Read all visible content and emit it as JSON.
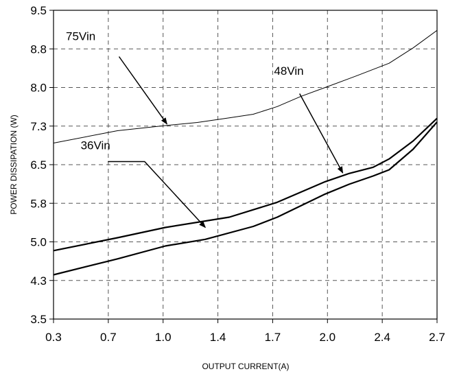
{
  "chart_data": {
    "type": "line",
    "title": "",
    "xlabel": "OUTPUT CURRENT(A)",
    "ylabel": "POWER DISSIPATION (W)",
    "xlim": [
      0.3,
      2.7
    ],
    "ylim": [
      3.5,
      9.5
    ],
    "x_tick_labels": [
      "0.3",
      "0.7",
      "1.0",
      "1.4",
      "1.7",
      "2.0",
      "2.4",
      "2.7"
    ],
    "y_tick_labels": [
      "3.5",
      "4.3",
      "5.0",
      "5.8",
      "6.5",
      "7.3",
      "8.0",
      "8.8",
      "9.5"
    ],
    "grid": true,
    "grid_style": "dashed",
    "series": [
      {
        "name": "75Vin",
        "stroke_width": 1,
        "x": [
          0.3,
          0.7,
          1.0,
          1.2,
          1.4,
          1.55,
          1.7,
          1.85,
          2.0,
          2.2,
          2.4,
          2.55,
          2.7
        ],
        "y": [
          6.92,
          7.16,
          7.26,
          7.32,
          7.41,
          7.48,
          7.63,
          7.83,
          8.0,
          8.23,
          8.47,
          8.77,
          9.11
        ]
      },
      {
        "name": "48Vin",
        "stroke_width": 2.2,
        "x": [
          0.3,
          0.7,
          1.0,
          1.4,
          1.7,
          2.0,
          2.15,
          2.3,
          2.4,
          2.55,
          2.7
        ],
        "y": [
          4.83,
          5.08,
          5.28,
          5.48,
          5.77,
          6.17,
          6.33,
          6.45,
          6.61,
          6.96,
          7.4
        ]
      },
      {
        "name": "36Vin",
        "stroke_width": 2.2,
        "x": [
          0.3,
          0.7,
          1.0,
          1.25,
          1.55,
          1.7,
          2.0,
          2.15,
          2.3,
          2.4,
          2.55,
          2.7
        ],
        "y": [
          4.36,
          4.67,
          4.92,
          5.05,
          5.3,
          5.48,
          5.93,
          6.12,
          6.28,
          6.4,
          6.8,
          7.33
        ]
      }
    ],
    "annotations": [
      {
        "label": "75Vin",
        "text_at": [
          0.47,
          8.92
        ],
        "arrow": [
          [
            0.71,
            8.6
          ],
          [
            1.01,
            7.29
          ]
        ],
        "anchor": "middle"
      },
      {
        "label": "48Vin",
        "text_at": [
          1.68,
          8.25
        ],
        "arrow": [
          [
            1.84,
            7.88
          ],
          [
            2.11,
            6.34
          ]
        ],
        "anchor": "start"
      },
      {
        "label": "36Vin",
        "text_at": [
          0.47,
          6.8
        ],
        "arrow": [
          [
            0.64,
            6.56
          ],
          [
            0.87,
            6.56
          ],
          [
            1.25,
            5.28
          ]
        ],
        "anchor": "start"
      }
    ]
  }
}
